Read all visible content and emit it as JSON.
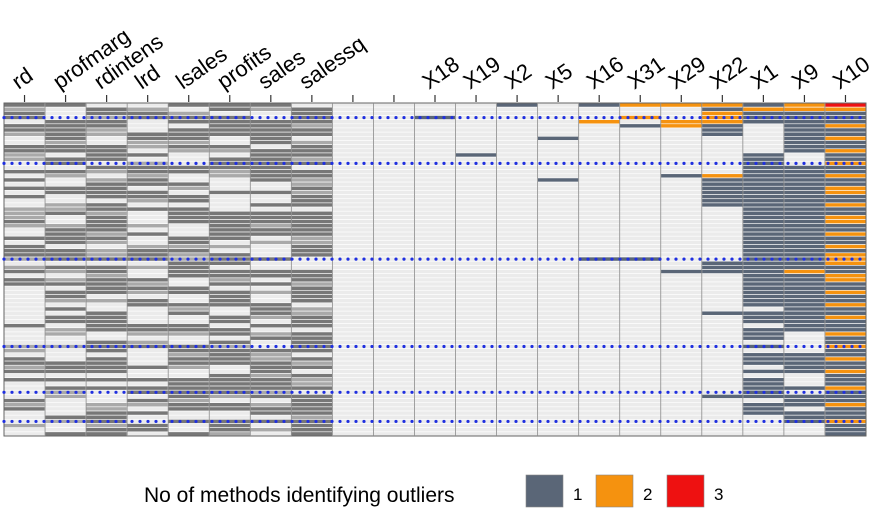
{
  "chart_data": {
    "type": "heatmap",
    "columns": [
      "rd",
      "profmarg",
      "rdintens",
      "lrd",
      "lsales",
      "profits",
      "sales",
      "salessq",
      "",
      "",
      "X18",
      "X19",
      "X2",
      "X5",
      "X16",
      "X31",
      "X29",
      "X22",
      "X1",
      "X9",
      "X10"
    ],
    "n_rows": 80,
    "legend": {
      "title": "No of methods identifying outliers",
      "items": [
        {
          "label": "1",
          "color": "#5a6677"
        },
        {
          "label": "2",
          "color": "#f5920f"
        },
        {
          "label": "3",
          "color": "#ee1111"
        }
      ],
      "placement": "bottom"
    },
    "colors": {
      "missing_dark": "#777777",
      "missing_mid": "#a9a9a9",
      "present": "#ebebeb",
      "gridline": "#ffffff",
      "highlight_dots": "#1f2fe0"
    },
    "highlighted_rows": [
      3,
      14,
      37,
      58,
      69,
      76
    ],
    "outlier_cells": [
      {
        "col": "X10",
        "rows": [
          [
            0,
            0,
            3
          ],
          [
            1,
            1,
            2
          ],
          [
            2,
            2,
            1
          ],
          [
            3,
            4,
            1
          ],
          [
            5,
            5,
            2
          ],
          [
            6,
            7,
            1
          ],
          [
            8,
            8,
            2
          ],
          [
            9,
            10,
            1
          ],
          [
            11,
            11,
            2
          ],
          [
            12,
            13,
            1
          ],
          [
            14,
            14,
            2
          ],
          [
            15,
            16,
            1
          ],
          [
            17,
            17,
            2
          ],
          [
            18,
            19,
            1
          ],
          [
            20,
            21,
            2
          ],
          [
            22,
            23,
            1
          ],
          [
            24,
            24,
            2
          ],
          [
            25,
            26,
            1
          ],
          [
            27,
            28,
            2
          ],
          [
            29,
            30,
            1
          ],
          [
            31,
            31,
            2
          ],
          [
            32,
            33,
            1
          ],
          [
            34,
            34,
            2
          ],
          [
            35,
            35,
            1
          ],
          [
            36,
            38,
            2
          ],
          [
            39,
            40,
            1
          ],
          [
            41,
            42,
            2
          ],
          [
            43,
            44,
            1
          ],
          [
            45,
            45,
            2
          ],
          [
            46,
            47,
            1
          ],
          [
            48,
            48,
            2
          ],
          [
            49,
            50,
            1
          ],
          [
            51,
            51,
            2
          ],
          [
            52,
            54,
            1
          ],
          [
            55,
            55,
            2
          ],
          [
            56,
            57,
            1
          ],
          [
            58,
            58,
            2
          ],
          [
            59,
            60,
            1
          ],
          [
            61,
            61,
            2
          ],
          [
            62,
            63,
            1
          ],
          [
            64,
            64,
            2
          ],
          [
            65,
            67,
            1
          ],
          [
            68,
            68,
            2
          ],
          [
            69,
            71,
            1
          ],
          [
            72,
            72,
            2
          ],
          [
            73,
            75,
            1
          ],
          [
            76,
            76,
            2
          ],
          [
            77,
            79,
            1
          ]
        ]
      },
      {
        "col": "X9",
        "rows": [
          [
            0,
            1,
            2
          ],
          [
            2,
            11,
            1
          ],
          [
            15,
            54,
            1
          ],
          [
            40,
            40,
            2
          ],
          [
            60,
            64,
            1
          ],
          [
            68,
            68,
            1
          ],
          [
            70,
            72,
            1
          ],
          [
            74,
            76,
            1
          ]
        ]
      },
      {
        "col": "X1",
        "rows": [
          [
            0,
            0,
            1
          ],
          [
            1,
            1,
            2
          ],
          [
            2,
            4,
            1
          ],
          [
            12,
            48,
            1
          ],
          [
            50,
            52,
            1
          ],
          [
            54,
            56,
            1
          ],
          [
            58,
            58,
            1
          ],
          [
            60,
            62,
            1
          ],
          [
            64,
            64,
            1
          ],
          [
            66,
            70,
            1
          ],
          [
            72,
            74,
            1
          ]
        ]
      },
      {
        "col": "X22",
        "rows": [
          [
            0,
            0,
            2
          ],
          [
            1,
            1,
            1
          ],
          [
            2,
            4,
            2
          ],
          [
            5,
            7,
            1
          ],
          [
            17,
            17,
            2
          ],
          [
            18,
            24,
            1
          ],
          [
            38,
            40,
            1
          ],
          [
            50,
            50,
            1
          ],
          [
            70,
            70,
            1
          ]
        ]
      },
      {
        "col": "X29",
        "rows": [
          [
            0,
            0,
            2
          ],
          [
            4,
            5,
            2
          ],
          [
            17,
            17,
            1
          ],
          [
            40,
            40,
            1
          ]
        ]
      },
      {
        "col": "X31",
        "rows": [
          [
            0,
            0,
            2
          ],
          [
            3,
            3,
            2
          ],
          [
            5,
            5,
            1
          ],
          [
            37,
            37,
            1
          ]
        ]
      },
      {
        "col": "X16",
        "rows": [
          [
            0,
            0,
            1
          ],
          [
            4,
            4,
            2
          ],
          [
            37,
            37,
            1
          ]
        ]
      },
      {
        "col": "X5",
        "rows": [
          [
            8,
            8,
            1
          ],
          [
            18,
            18,
            1
          ]
        ]
      },
      {
        "col": "X2",
        "rows": [
          [
            0,
            0,
            1
          ]
        ]
      },
      {
        "col": "X19",
        "rows": [
          [
            12,
            12,
            1
          ]
        ]
      },
      {
        "col": "X18",
        "rows": [
          [
            3,
            3,
            1
          ]
        ]
      }
    ]
  }
}
